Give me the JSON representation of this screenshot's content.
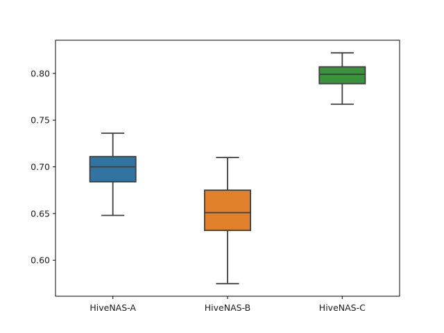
{
  "chart_data": {
    "type": "box",
    "title": "",
    "xlabel": "",
    "ylabel": "",
    "categories": [
      "HiveNAS-A",
      "HiveNAS-B",
      "HiveNAS-C"
    ],
    "boxes": [
      {
        "name": "HiveNAS-A",
        "whisker_low": 0.648,
        "q1": 0.684,
        "median": 0.7,
        "q3": 0.711,
        "whisker_high": 0.736,
        "color": "#3274a1"
      },
      {
        "name": "HiveNAS-B",
        "whisker_low": 0.575,
        "q1": 0.632,
        "median": 0.651,
        "q3": 0.675,
        "whisker_high": 0.71,
        "color": "#e1812c"
      },
      {
        "name": "HiveNAS-C",
        "whisker_low": 0.767,
        "q1": 0.789,
        "median": 0.799,
        "q3": 0.807,
        "whisker_high": 0.822,
        "color": "#3a923a"
      }
    ],
    "ylim": [
      0.5615,
      0.8355
    ],
    "yticks": [
      0.6,
      0.65,
      0.7,
      0.75,
      0.8
    ],
    "ytick_labels": [
      "0.60",
      "0.65",
      "0.70",
      "0.75",
      "0.80"
    ],
    "grid": false,
    "legend": "none"
  }
}
